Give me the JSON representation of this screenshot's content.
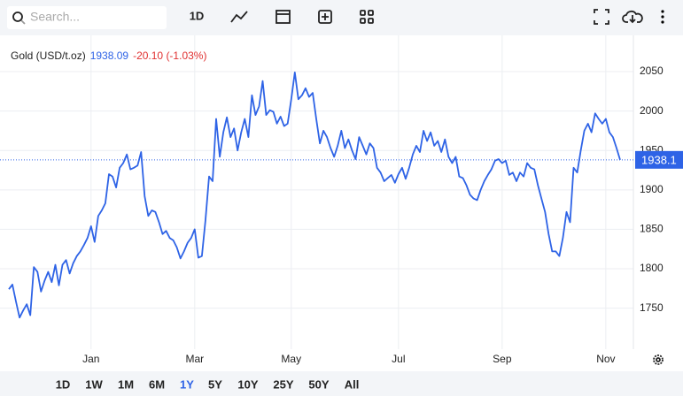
{
  "toolbar": {
    "search_placeholder": "Search...",
    "interval": "1D"
  },
  "chart_data": {
    "type": "line",
    "title": "Gold (USD/t.oz)",
    "last_price": 1938.09,
    "change": "-20.10 (-1.03%)",
    "categories": [
      null,
      null,
      null,
      null,
      null,
      null,
      null,
      null,
      null,
      null,
      null,
      null,
      null,
      null,
      null,
      null,
      null,
      null,
      null,
      null,
      null,
      null,
      null,
      "Jan",
      null,
      null,
      null,
      null,
      null,
      null,
      null,
      null,
      null,
      null,
      null,
      null,
      null,
      null,
      null,
      null,
      null,
      null,
      null,
      null,
      null,
      null,
      null,
      null,
      null,
      null,
      null,
      null,
      "Mar",
      null,
      null,
      null,
      null,
      null,
      null,
      null,
      null,
      null,
      null,
      null,
      null,
      null,
      null,
      null,
      null,
      null,
      null,
      null,
      null,
      null,
      null,
      null,
      null,
      null,
      null,
      "May",
      null,
      null,
      null,
      null,
      null,
      null,
      null,
      null,
      null,
      null,
      null,
      null,
      null,
      null,
      null,
      null,
      null,
      null,
      null,
      null,
      null,
      null,
      null,
      null,
      null,
      null,
      null,
      null,
      null,
      "Jul",
      null,
      null,
      null,
      null,
      null,
      null,
      null,
      null,
      null,
      null,
      null,
      null,
      null,
      null,
      null,
      null,
      null,
      null,
      null,
      null,
      null,
      null,
      null,
      null,
      null,
      null,
      null,
      null,
      "Sep",
      null,
      null,
      null,
      null,
      null,
      null,
      null,
      null,
      null,
      null,
      null,
      null,
      null,
      null,
      null,
      null,
      null,
      null,
      null,
      null,
      null,
      null,
      null,
      null,
      null,
      null,
      null,
      null,
      "Nov",
      null,
      null,
      null,
      null
    ],
    "values": [
      1774,
      1780,
      1758,
      1738,
      1747,
      1755,
      1741,
      1802,
      1796,
      1771,
      1785,
      1796,
      1783,
      1805,
      1779,
      1805,
      1811,
      1794,
      1807,
      1816,
      1822,
      1830,
      1839,
      1854,
      1834,
      1867,
      1874,
      1883,
      1920,
      1917,
      1903,
      1928,
      1934,
      1945,
      1926,
      1928,
      1931,
      1948,
      1892,
      1867,
      1874,
      1872,
      1859,
      1844,
      1848,
      1839,
      1836,
      1827,
      1813,
      1822,
      1833,
      1839,
      1850,
      1814,
      1816,
      1861,
      1917,
      1911,
      1990,
      1942,
      1973,
      1992,
      1967,
      1978,
      1950,
      1973,
      1990,
      1967,
      2020,
      1995,
      2006,
      2038,
      1995,
      2001,
      1999,
      1984,
      1993,
      1981,
      1984,
      2015,
      2049,
      2015,
      2020,
      2029,
      2018,
      2023,
      1990,
      1959,
      1975,
      1967,
      1953,
      1942,
      1956,
      1975,
      1953,
      1964,
      1950,
      1939,
      1967,
      1956,
      1945,
      1959,
      1953,
      1928,
      1922,
      1911,
      1915,
      1919,
      1909,
      1920,
      1928,
      1914,
      1928,
      1945,
      1956,
      1948,
      1975,
      1962,
      1973,
      1956,
      1962,
      1948,
      1964,
      1942,
      1934,
      1942,
      1917,
      1915,
      1906,
      1894,
      1889,
      1887,
      1900,
      1911,
      1919,
      1926,
      1937,
      1939,
      1934,
      1937,
      1919,
      1922,
      1911,
      1922,
      1917,
      1934,
      1928,
      1926,
      1906,
      1889,
      1872,
      1844,
      1822,
      1822,
      1816,
      1839,
      1872,
      1859,
      1928,
      1922,
      1950,
      1975,
      1984,
      1973,
      1997,
      1990,
      1984,
      1990,
      1973,
      1967,
      1953,
      1938
    ],
    "color": "#2e63e6",
    "ylim": [
      1698,
      2096
    ],
    "yticks": [
      1750,
      1800,
      1850,
      1900,
      1950,
      2000,
      2050
    ],
    "grid": true,
    "current_line": 1938.1
  },
  "ranges": [
    "1D",
    "1W",
    "1M",
    "6M",
    "1Y",
    "5Y",
    "10Y",
    "25Y",
    "50Y",
    "All"
  ],
  "active_range": "1Y"
}
